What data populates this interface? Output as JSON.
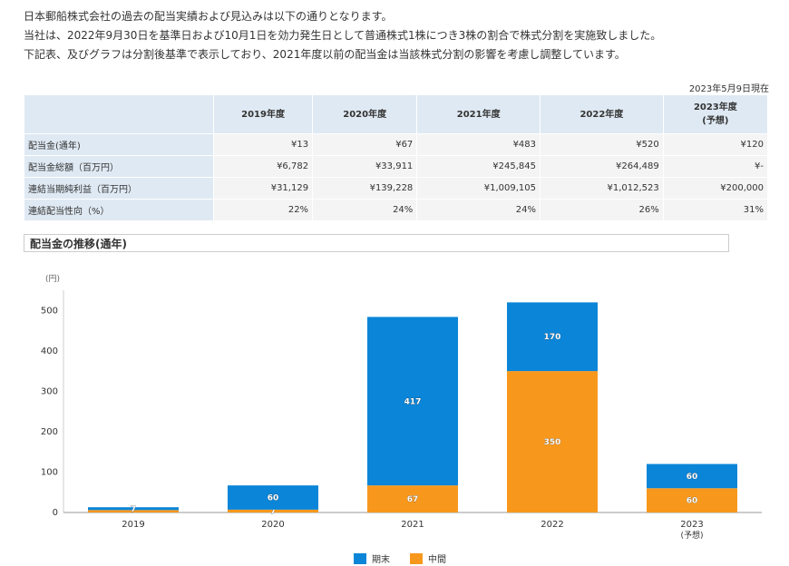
{
  "intro": {
    "line1": "日本郵船株式会社の過去の配当実績および見込みは以下の通りとなります。",
    "line2": "当社は、2022年9月30日を基準日および10月1日を効力発生日として普通株式1株につき3株の割合で株式分割を実施致しました。",
    "line3": "下記表、及びグラフは分割後基準で表示しており、2021年度以前の配当金は当該株式分割の影響を考慮し調整しています。"
  },
  "as_of": "2023年5月9日現在",
  "table": {
    "headers": [
      "2019年度",
      "2020年度",
      "2021年度",
      "2022年度",
      "2023年度",
      "(予想)"
    ],
    "rows": [
      {
        "label": "配当金(通年)",
        "values": [
          "¥13",
          "¥67",
          "¥483",
          "¥520",
          "¥120"
        ]
      },
      {
        "label": "配当金総額（百万円）",
        "values": [
          "¥6,782",
          "¥33,911",
          "¥245,845",
          "¥264,489",
          "¥-"
        ]
      },
      {
        "label": "連結当期純利益（百万円）",
        "values": [
          "¥31,129",
          "¥139,228",
          "¥1,009,105",
          "¥1,012,523",
          "¥200,000"
        ]
      },
      {
        "label": "連結配当性向（%）",
        "values": [
          "22%",
          "24%",
          "24%",
          "26%",
          "31%"
        ]
      }
    ]
  },
  "chart_title": "配当金の推移(通年)",
  "chart_data": {
    "type": "bar",
    "stacked": true,
    "categories": [
      "2019",
      "2020",
      "2021",
      "2022",
      "2023"
    ],
    "category_sublabels": [
      "",
      "",
      "",
      "",
      "(予想)"
    ],
    "ylabel": "(円)",
    "ylim": [
      0,
      550
    ],
    "yticks": [
      0,
      100,
      200,
      300,
      400,
      500
    ],
    "series": [
      {
        "name": "中間",
        "color": "#f7981d",
        "values": [
          6,
          7,
          67,
          350,
          60
        ],
        "labels": [
          "",
          "7",
          "67",
          "350",
          "60"
        ]
      },
      {
        "name": "期末",
        "color": "#0a85d8",
        "values": [
          7,
          60,
          417,
          170,
          60
        ],
        "labels": [
          "7",
          "60",
          "417",
          "170",
          "60"
        ]
      }
    ],
    "legend_order": [
      "期末",
      "中間"
    ],
    "legend_position": "bottom",
    "grid": false
  }
}
